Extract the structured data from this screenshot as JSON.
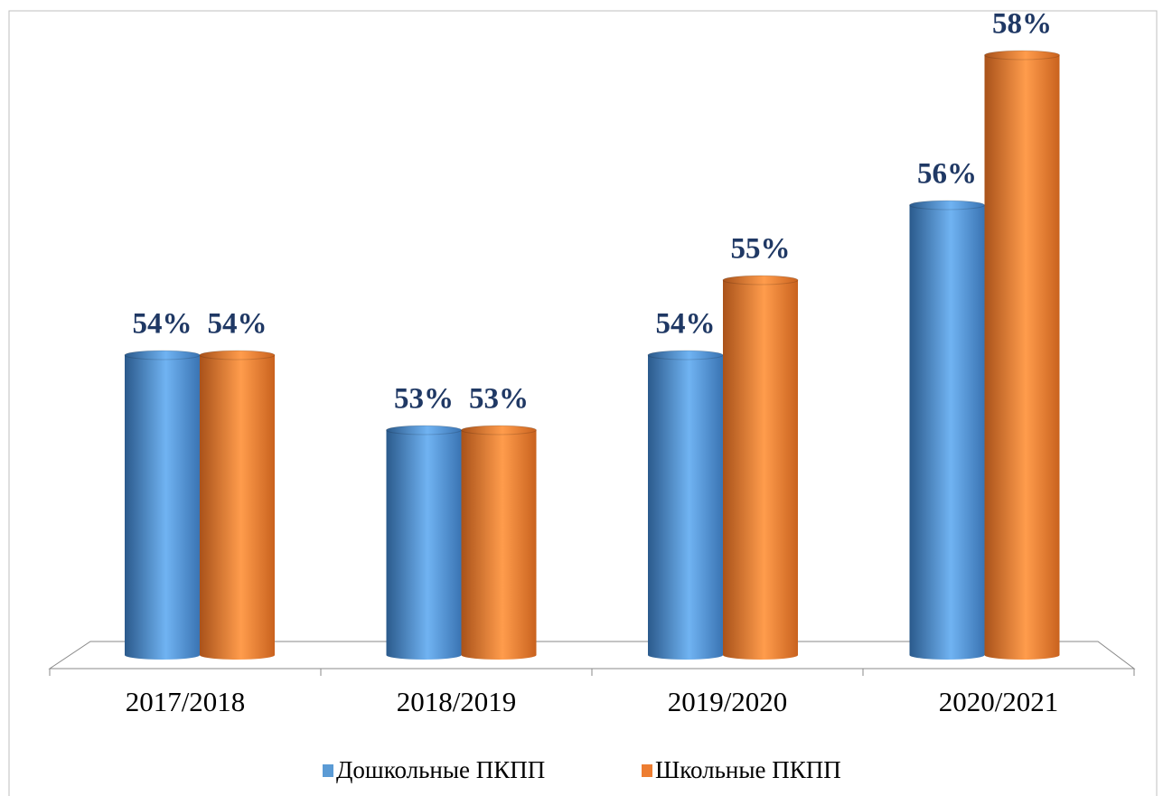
{
  "chart_data": {
    "type": "bar",
    "categories": [
      "2017/2018",
      "2018/2019",
      "2019/2020",
      "2020/2021"
    ],
    "series": [
      {
        "name": "Дошкольные ПКПП",
        "color": "#5b9bd5",
        "values": [
          54,
          53,
          54,
          56
        ],
        "value_labels": [
          "54%",
          "53%",
          "54%",
          "56%"
        ]
      },
      {
        "name": "Школьные ПКПП",
        "color": "#ed7d31",
        "values": [
          54,
          53,
          55,
          58
        ],
        "value_labels": [
          "54%",
          "53%",
          "55%",
          "58%"
        ]
      }
    ],
    "ylim": [
      50,
      58
    ]
  }
}
